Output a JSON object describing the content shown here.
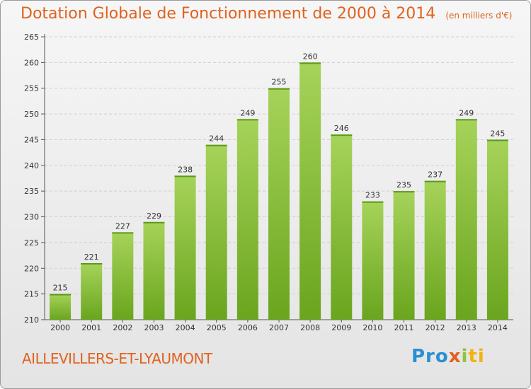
{
  "header": {
    "title": "Dotation Globale de Fonctionnement de 2000 à 2014",
    "subtitle": "(en milliers d'€)"
  },
  "footer": {
    "commune": "AILLEVILLERS-ET-LYAUMONT",
    "logo": "Proxiti",
    "logo_parts": [
      "Pro",
      "x",
      "i",
      "ti"
    ]
  },
  "colors": {
    "title": "#e0621e",
    "bar_light": "#a6d35a",
    "bar_dark": "#6aa51e"
  },
  "chart_data": {
    "type": "bar",
    "title": "Dotation Globale de Fonctionnement de 2000 à 2014",
    "subtitle": "(en milliers d'€)",
    "categories": [
      "2000",
      "2001",
      "2002",
      "2003",
      "2004",
      "2005",
      "2006",
      "2007",
      "2008",
      "2009",
      "2010",
      "2011",
      "2012",
      "2013",
      "2014"
    ],
    "values": [
      215,
      221,
      227,
      229,
      238,
      244,
      249,
      255,
      260,
      246,
      233,
      235,
      237,
      249,
      245
    ],
    "ylim": [
      210,
      265
    ],
    "yticks": [
      210,
      215,
      220,
      225,
      230,
      235,
      240,
      245,
      250,
      255,
      260,
      265
    ],
    "grid": true,
    "xlabel": "",
    "ylabel": ""
  }
}
